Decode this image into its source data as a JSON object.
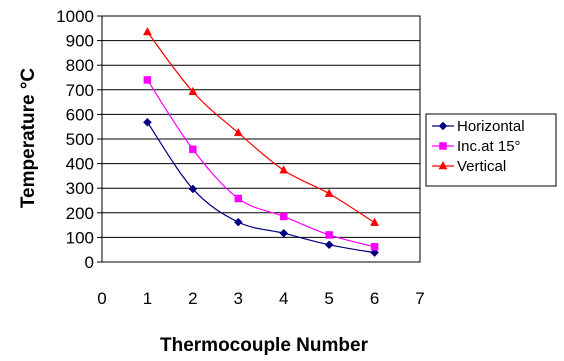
{
  "chart_data": {
    "type": "line",
    "title": "",
    "xlabel": "Thermocouple Number",
    "ylabel": "Temperature °C",
    "xlim": [
      0,
      7
    ],
    "ylim": [
      0,
      1000
    ],
    "x_ticks": [
      0,
      1,
      2,
      3,
      4,
      5,
      6,
      7
    ],
    "y_ticks": [
      0,
      100,
      200,
      300,
      400,
      500,
      600,
      700,
      800,
      900,
      1000
    ],
    "grid": "horizontal",
    "legend_position": "right",
    "x": [
      1,
      2,
      3,
      4,
      5,
      6
    ],
    "series": [
      {
        "name": "Horizontal",
        "values": [
          568,
          297,
          162,
          117,
          70,
          38
        ],
        "color": "#000080",
        "marker": "diamond"
      },
      {
        "name": "Inc.at 15°",
        "values": [
          740,
          458,
          258,
          185,
          110,
          62
        ],
        "color": "#ff00ff",
        "marker": "square"
      },
      {
        "name": "Vertical",
        "values": [
          935,
          692,
          525,
          373,
          278,
          160
        ],
        "color": "#ff0000",
        "marker": "triangle"
      }
    ]
  }
}
